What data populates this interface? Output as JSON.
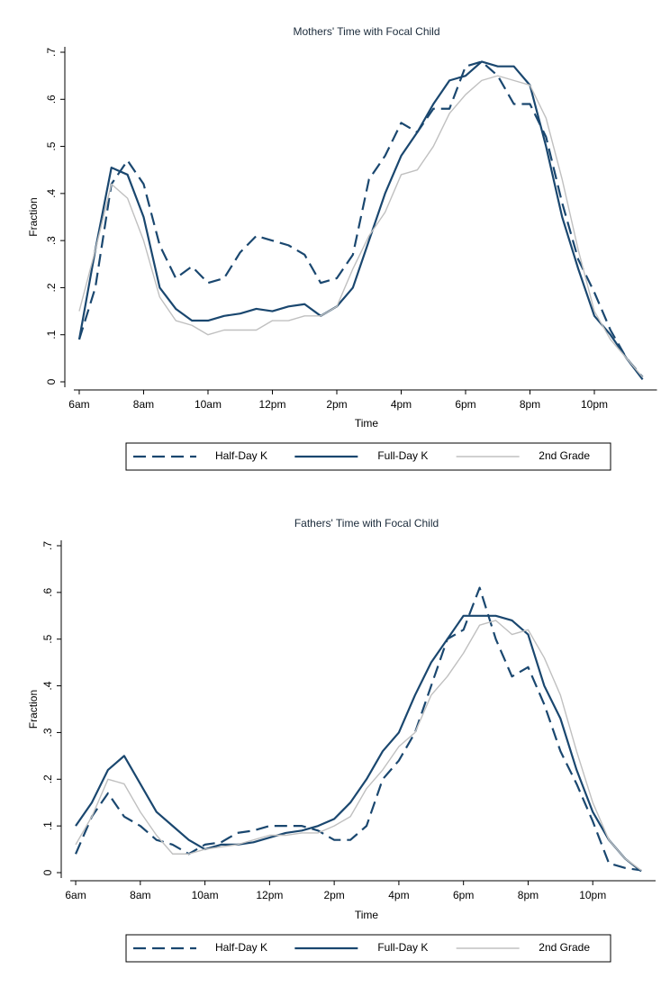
{
  "chart_data": [
    {
      "type": "line",
      "title": "Mothers' Time with Focal Child",
      "x_label": "Time",
      "y_label": "Fraction",
      "x": [
        6,
        6.5,
        7,
        7.5,
        8,
        8.5,
        9,
        9.5,
        10,
        10.5,
        11,
        11.5,
        12,
        12.5,
        13,
        13.5,
        14,
        14.5,
        15,
        15.5,
        16,
        16.5,
        17,
        17.5,
        18,
        18.5,
        19,
        19.5,
        20,
        20.5,
        21,
        21.5,
        22,
        22.5,
        23,
        23.5
      ],
      "xlim": [
        5.5,
        24
      ],
      "ylim": [
        0,
        0.7
      ],
      "xticks": [
        {
          "value": 6,
          "label": "6am"
        },
        {
          "value": 8,
          "label": "8am"
        },
        {
          "value": 10,
          "label": "10am"
        },
        {
          "value": 12,
          "label": "12pm"
        },
        {
          "value": 14,
          "label": "2pm"
        },
        {
          "value": 16,
          "label": "4pm"
        },
        {
          "value": 18,
          "label": "6pm"
        },
        {
          "value": 20,
          "label": "8pm"
        },
        {
          "value": 22,
          "label": "10pm"
        }
      ],
      "yticks": [
        0,
        {
          "value": 0.1,
          "label": ".1"
        },
        {
          "value": 0.2,
          "label": ".2"
        },
        {
          "value": 0.3,
          "label": ".3"
        },
        {
          "value": 0.4,
          "label": ".4"
        },
        {
          "value": 0.5,
          "label": ".5"
        },
        {
          "value": 0.6,
          "label": ".6"
        },
        {
          "value": 0.7,
          "label": ".7"
        }
      ],
      "legend": "bottom",
      "series": [
        {
          "name": "Half-Day K",
          "color": "#1a476f",
          "line_style": "dashed",
          "values": [
            0.09,
            0.2,
            0.42,
            0.47,
            0.42,
            0.29,
            0.22,
            0.245,
            0.21,
            0.22,
            0.275,
            0.31,
            0.3,
            0.29,
            0.27,
            0.21,
            0.22,
            0.27,
            0.43,
            0.48,
            0.55,
            0.53,
            0.58,
            0.58,
            0.67,
            0.68,
            0.65,
            0.59,
            0.59,
            0.52,
            0.38,
            0.26,
            0.19,
            0.11,
            0.05,
            0.01
          ]
        },
        {
          "name": "Full-Day K",
          "color": "#1a476f",
          "line_style": "solid",
          "values": [
            0.09,
            0.28,
            0.455,
            0.44,
            0.35,
            0.2,
            0.155,
            0.13,
            0.13,
            0.14,
            0.145,
            0.155,
            0.15,
            0.16,
            0.165,
            0.14,
            0.16,
            0.2,
            0.3,
            0.4,
            0.48,
            0.53,
            0.59,
            0.64,
            0.65,
            0.68,
            0.67,
            0.67,
            0.63,
            0.5,
            0.35,
            0.24,
            0.14,
            0.1,
            0.05,
            0.005
          ]
        },
        {
          "name": "2nd Grade",
          "color": "#c0c0c0",
          "line_style": "solid",
          "values": [
            0.15,
            0.28,
            0.42,
            0.39,
            0.3,
            0.18,
            0.13,
            0.12,
            0.1,
            0.11,
            0.11,
            0.11,
            0.13,
            0.13,
            0.14,
            0.14,
            0.16,
            0.24,
            0.31,
            0.36,
            0.44,
            0.45,
            0.5,
            0.57,
            0.61,
            0.64,
            0.65,
            0.64,
            0.63,
            0.56,
            0.43,
            0.28,
            0.15,
            0.09,
            0.05,
            0.01
          ]
        }
      ]
    },
    {
      "type": "line",
      "title": "Fathers' Time with Focal Child",
      "x_label": "Time",
      "y_label": "Fraction",
      "x": [
        6,
        6.5,
        7,
        7.5,
        8,
        8.5,
        9,
        9.5,
        10,
        10.5,
        11,
        11.5,
        12,
        12.5,
        13,
        13.5,
        14,
        14.5,
        15,
        15.5,
        16,
        16.5,
        17,
        17.5,
        18,
        18.5,
        19,
        19.5,
        20,
        20.5,
        21,
        21.5,
        22,
        22.5,
        23,
        23.5
      ],
      "xlim": [
        5.5,
        24
      ],
      "ylim": [
        0,
        0.7
      ],
      "xticks": [
        {
          "value": 6,
          "label": "6am"
        },
        {
          "value": 8,
          "label": "8am"
        },
        {
          "value": 10,
          "label": "10am"
        },
        {
          "value": 12,
          "label": "12pm"
        },
        {
          "value": 14,
          "label": "2pm"
        },
        {
          "value": 16,
          "label": "4pm"
        },
        {
          "value": 18,
          "label": "6pm"
        },
        {
          "value": 20,
          "label": "8pm"
        },
        {
          "value": 22,
          "label": "10pm"
        }
      ],
      "yticks": [
        0,
        {
          "value": 0.1,
          "label": ".1"
        },
        {
          "value": 0.2,
          "label": ".2"
        },
        {
          "value": 0.3,
          "label": ".3"
        },
        {
          "value": 0.4,
          "label": ".4"
        },
        {
          "value": 0.5,
          "label": ".5"
        },
        {
          "value": 0.6,
          "label": ".6"
        },
        {
          "value": 0.7,
          "label": ".7"
        }
      ],
      "legend": "bottom",
      "series": [
        {
          "name": "Half-Day K",
          "color": "#1a476f",
          "line_style": "dashed",
          "values": [
            0.04,
            0.12,
            0.17,
            0.12,
            0.1,
            0.07,
            0.06,
            0.04,
            0.06,
            0.065,
            0.085,
            0.09,
            0.1,
            0.1,
            0.1,
            0.09,
            0.07,
            0.07,
            0.1,
            0.2,
            0.24,
            0.3,
            0.4,
            0.5,
            0.52,
            0.61,
            0.5,
            0.42,
            0.44,
            0.36,
            0.26,
            0.19,
            0.11,
            0.02,
            0.01,
            0.005
          ]
        },
        {
          "name": "Full-Day K",
          "color": "#1a476f",
          "line_style": "solid",
          "values": [
            0.1,
            0.15,
            0.22,
            0.25,
            0.19,
            0.13,
            0.1,
            0.07,
            0.05,
            0.06,
            0.06,
            0.065,
            0.075,
            0.085,
            0.09,
            0.1,
            0.115,
            0.15,
            0.2,
            0.26,
            0.3,
            0.38,
            0.45,
            0.5,
            0.55,
            0.55,
            0.55,
            0.54,
            0.51,
            0.4,
            0.33,
            0.22,
            0.13,
            0.07,
            0.03,
            0.003
          ]
        },
        {
          "name": "2nd Grade",
          "color": "#c0c0c0",
          "line_style": "solid",
          "values": [
            0.06,
            0.12,
            0.2,
            0.19,
            0.13,
            0.08,
            0.04,
            0.04,
            0.05,
            0.055,
            0.06,
            0.07,
            0.08,
            0.08,
            0.085,
            0.085,
            0.1,
            0.12,
            0.18,
            0.22,
            0.27,
            0.3,
            0.38,
            0.42,
            0.47,
            0.53,
            0.54,
            0.51,
            0.52,
            0.46,
            0.38,
            0.26,
            0.15,
            0.07,
            0.03,
            0.005
          ]
        }
      ]
    }
  ]
}
